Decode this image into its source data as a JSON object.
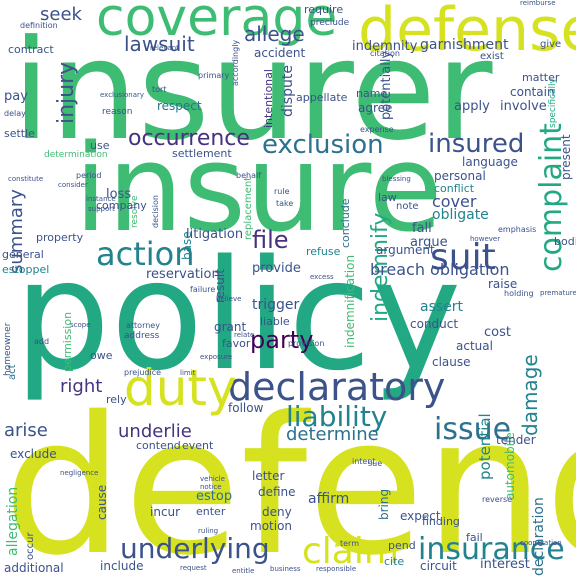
{
  "cloud": {
    "defend": "defend",
    "policy": "policy",
    "insurer": "insurer",
    "insure": "insure",
    "defense": "defense",
    "coverage": "coverage",
    "declaratory": "declaratory",
    "duty": "duty",
    "action": "action",
    "suit": "suit",
    "claim": "claim",
    "insurance": "insurance",
    "underlying": "underlying",
    "liability": "liability",
    "issue": "issue",
    "exclusion": "exclusion",
    "occurrence": "occurrence",
    "insured": "insured",
    "complaint": "complaint",
    "indemnify": "indemnify",
    "injury": "injury",
    "lawsuit": "lawsuit",
    "seek": "seek",
    "allege": "allege",
    "file": "file",
    "party": "party",
    "right": "right",
    "arise": "arise",
    "underlie": "underlie",
    "determine": "determine",
    "damage": "damage",
    "summary": "summary",
    "cover": "cover",
    "obligate": "obligate",
    "breach obligation": "breach obligation",
    "indemnity": "indemnity",
    "garnishment": "garnishment",
    "accident": "accident",
    "respect": "respect",
    "dispute": "dispute",
    "intentional": "intentional",
    "appellate": "appellate",
    "agree": "agree",
    "name": "name",
    "potentially": "potentially",
    "apply": "apply",
    "involve": "involve",
    "contain": "contain",
    "matter": "matter",
    "settlement": "settlement",
    "replacement": "replacement",
    "base": "base",
    "conclude": "conclude",
    "law": "law",
    "note": "note",
    "personal": "personal",
    "conflict": "conflict",
    "language": "language",
    "present": "present",
    "fall": "fall",
    "argue": "argue",
    "cost": "cost",
    "assert": "assert",
    "conduct": "conduct",
    "actual": "actual",
    "clause": "clause",
    "litigation": "litigation",
    "reservation": "reservation",
    "provide": "provide",
    "refuse": "refuse",
    "trigger": "trigger",
    "grant": "grant",
    "liable": "liable",
    "favor": "favor",
    "result": "result",
    "indemnification": "indemnification",
    "argument": "argument",
    "raise": "raise",
    "property": "property",
    "general": "general",
    "estoppel": "estoppel",
    "homeowner": "homeowner",
    "permission": "permission",
    "act": "act",
    "loss": "loss",
    "company": "company",
    "pay": "pay",
    "settle": "settle",
    "determination": "determination",
    "use": "use",
    "potential": "potential",
    "declaration": "declaration",
    "automobile": "automobile",
    "expect": "expect",
    "finding": "finding",
    "tender": "tender",
    "follow": "follow",
    "contend": "contend",
    "event": "event",
    "letter": "letter",
    "define": "define",
    "deny": "deny",
    "affirm": "affirm",
    "bring": "bring",
    "incur": "incur",
    "estop": "estop",
    "enter": "enter",
    "motion": "motion",
    "cause": "cause",
    "allegation": "allegation",
    "exclude": "exclude",
    "owe": "owe",
    "rely": "rely",
    "additional": "additional",
    "include": "include",
    "circuit": "circuit",
    "interest": "interest",
    "fail": "fail",
    "pend": "pend",
    "cite": "cite",
    "bodily": "bodily",
    "require": "require",
    "preclude": "preclude",
    "exist": "exist",
    "give": "give",
    "reimburse": "reimburse",
    "definition": "definition",
    "contract": "contract",
    "relevant": "relevant",
    "citation": "citation",
    "primary": "primary",
    "tort": "tort",
    "reason": "reason",
    "delay": "delay",
    "expense": "expense",
    "specifically": "specifically",
    "period": "period",
    "consider": "consider",
    "instance": "instance",
    "blessing": "blessing",
    "rule": "rule",
    "take": "take",
    "however": "however",
    "emphasis": "emphasis",
    "failure": "failure",
    "believe": "believe",
    "excess": "excess",
    "holding": "holding",
    "attorney": "attorney",
    "address": "address",
    "scope": "scope",
    "add": "add",
    "prejudice": "prejudice",
    "limit": "limit",
    "exposure": "exposure",
    "intent": "intent",
    "sue": "sue",
    "vehicle": "vehicle",
    "notice": "notice",
    "ruling": "ruling",
    "term": "term",
    "entitle": "entitle",
    "request": "request",
    "negligence": "negligence",
    "reverse": "reverse",
    "occur": "occur",
    "provision": "provision",
    "premature": "premature",
    "cooperation": "cooperation",
    "behalf": "behalf",
    "decision": "decision",
    "constitute": "constitute",
    "business": "business",
    "responsible": "responsible",
    "support": "support",
    "accordingly": "accordingly",
    "exclusionary": "exclusionary",
    "possible": "possible",
    "resolve": "resolve",
    "relate": "relate",
    "deter": "deter"
  }
}
